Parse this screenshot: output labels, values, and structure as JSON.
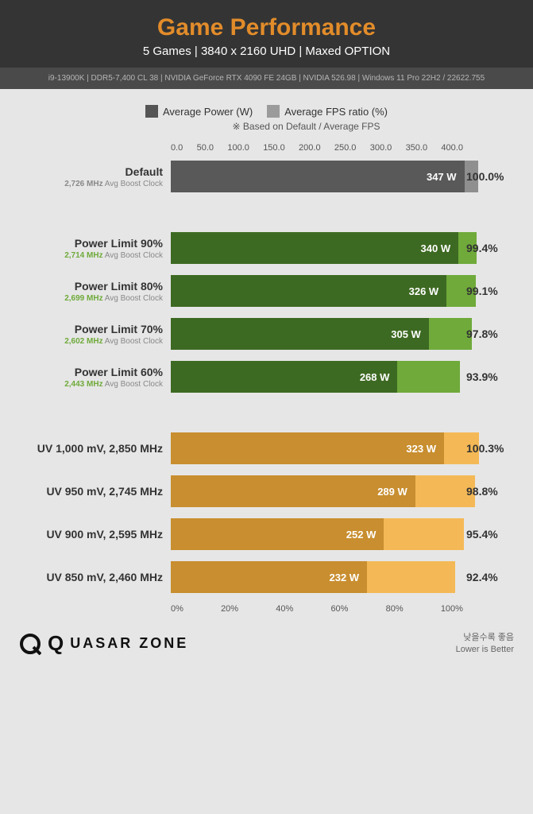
{
  "header": {
    "title": "Game Performance",
    "title_color": "#e28c2a",
    "subtitle": "5 Games  |  3840 x 2160 UHD  |  Maxed OPTION",
    "spec_line": "i9-13900K  |  DDR5-7,400 CL 38  |  NVIDIA GeForce RTX 4090 FE 24GB  |  NVIDIA 526.98  |  Windows 11 Pro 22H2 / 22622.755"
  },
  "legend": {
    "item1": "Average Power (W)",
    "swatch1": "#555555",
    "item2": "Average FPS ratio (%)",
    "swatch2": "#9b9b9b",
    "note": "※ Based on Default / Average FPS"
  },
  "chart": {
    "type": "grouped-horizontal-bar",
    "x_max": 400,
    "x_ticks_top": [
      "0.0",
      "50.0",
      "100.0",
      "150.0",
      "200.0",
      "250.0",
      "300.0",
      "350.0",
      "400.0"
    ],
    "pct_max": 110,
    "pct_ticks_bottom": [
      "0%",
      "20%",
      "40%",
      "60%",
      "80%",
      "100%"
    ],
    "groups": [
      {
        "color_outer": "#8f8f8f",
        "color_inner": "#595959",
        "rows": [
          {
            "label": "Default",
            "sub_mhz": "2,726 MHz",
            "sub_txt": "Avg Boost Clock",
            "sub_color": "#888888",
            "power": 347,
            "power_label": "347 W",
            "pct": 100.0,
            "pct_label": "100.0%"
          }
        ]
      },
      {
        "color_outer": "#6faa3a",
        "color_inner": "#3d6a22",
        "rows": [
          {
            "label": "Power Limit 90%",
            "sub_mhz": "2,714 MHz",
            "sub_txt": "Avg Boost Clock",
            "sub_color": "#6faa3a",
            "power": 340,
            "power_label": "340 W",
            "pct": 99.4,
            "pct_label": "99.4%"
          },
          {
            "label": "Power Limit 80%",
            "sub_mhz": "2,699 MHz",
            "sub_txt": "Avg Boost Clock",
            "sub_color": "#6faa3a",
            "power": 326,
            "power_label": "326 W",
            "pct": 99.1,
            "pct_label": "99.1%"
          },
          {
            "label": "Power Limit 70%",
            "sub_mhz": "2,602 MHz",
            "sub_txt": "Avg Boost Clock",
            "sub_color": "#6faa3a",
            "power": 305,
            "power_label": "305 W",
            "pct": 97.8,
            "pct_label": "97.8%"
          },
          {
            "label": "Power Limit 60%",
            "sub_mhz": "2,443 MHz",
            "sub_txt": "Avg Boost Clock",
            "sub_color": "#6faa3a",
            "power": 268,
            "power_label": "268 W",
            "pct": 93.9,
            "pct_label": "93.9%"
          }
        ]
      },
      {
        "color_outer": "#f4b956",
        "color_inner": "#c88e2f",
        "rows": [
          {
            "label": "UV 1,000 mV, 2,850 MHz",
            "sub_mhz": "",
            "sub_txt": "",
            "sub_color": "",
            "power": 323,
            "power_label": "323 W",
            "pct": 100.3,
            "pct_label": "100.3%"
          },
          {
            "label": "UV 950 mV, 2,745 MHz",
            "sub_mhz": "",
            "sub_txt": "",
            "sub_color": "",
            "power": 289,
            "power_label": "289 W",
            "pct": 98.8,
            "pct_label": "98.8%"
          },
          {
            "label": "UV 900 mV, 2,595 MHz",
            "sub_mhz": "",
            "sub_txt": "",
            "sub_color": "",
            "power": 252,
            "power_label": "252 W",
            "pct": 95.4,
            "pct_label": "95.4%"
          },
          {
            "label": "UV 850 mV, 2,460 MHz",
            "sub_mhz": "",
            "sub_txt": "",
            "sub_color": "",
            "power": 232,
            "power_label": "232 W",
            "pct": 92.4,
            "pct_label": "92.4%"
          }
        ]
      }
    ]
  },
  "footer": {
    "brand_q": "Q",
    "brand_text": "UASAR ZONE",
    "note_ko": "낮을수록 좋음",
    "note_en": "Lower is Better"
  }
}
